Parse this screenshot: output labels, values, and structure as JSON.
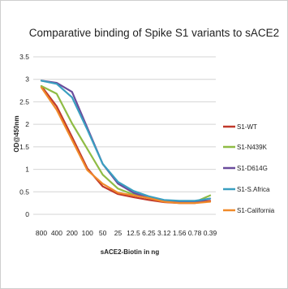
{
  "chart_data": {
    "type": "line",
    "title": "Comparative binding of Spike S1 variants to sACE2",
    "xlabel": "sACE2-Biotin in ng",
    "ylabel": "OD@450nm",
    "categories": [
      "800",
      "400",
      "200",
      "100",
      "50",
      "25",
      "12.5",
      "6.25",
      "3.12",
      "1.56",
      "0.78",
      "0.39"
    ],
    "yticks": [
      "0",
      "0.5",
      "1",
      "1.5",
      "2",
      "2.5",
      "3",
      "3.5"
    ],
    "ylim": [
      0,
      3.5
    ],
    "grid": true,
    "legend_position": "right",
    "series": [
      {
        "name": "S1-WT",
        "color": "#c0392b",
        "values": [
          2.85,
          2.4,
          1.72,
          1.02,
          0.62,
          0.45,
          0.38,
          0.32,
          0.27,
          0.25,
          0.25,
          0.3
        ]
      },
      {
        "name": "S1-N439K",
        "color": "#8fbc45",
        "values": [
          2.85,
          2.68,
          2.02,
          1.45,
          0.88,
          0.57,
          0.44,
          0.36,
          0.3,
          0.27,
          0.27,
          0.42
        ]
      },
      {
        "name": "S1-D614G",
        "color": "#6a4c9c",
        "values": [
          2.97,
          2.92,
          2.72,
          1.92,
          1.12,
          0.68,
          0.48,
          0.36,
          0.3,
          0.27,
          0.26,
          0.35
        ]
      },
      {
        "name": "S1-S.Africa",
        "color": "#3a9fc0",
        "values": [
          2.97,
          2.9,
          2.6,
          1.88,
          1.12,
          0.72,
          0.52,
          0.4,
          0.32,
          0.3,
          0.3,
          0.35
        ]
      },
      {
        "name": "S1-California",
        "color": "#f08a2a",
        "values": [
          2.82,
          2.32,
          1.65,
          0.98,
          0.68,
          0.48,
          0.42,
          0.36,
          0.28,
          0.25,
          0.25,
          0.28
        ]
      }
    ]
  }
}
